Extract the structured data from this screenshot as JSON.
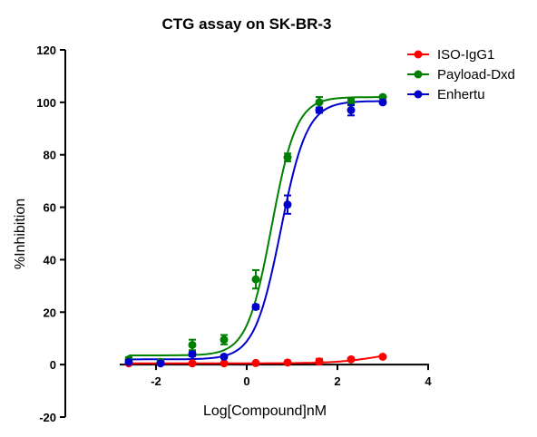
{
  "chart_data": {
    "type": "scatter",
    "title": "CTG assay on SK-BR-3",
    "xlabel": "Log[Compound]nM",
    "ylabel": "%Inhibition",
    "xlim": [
      -4,
      4
    ],
    "ylim": [
      -20,
      120
    ],
    "x_ticks": [
      -2,
      0,
      2,
      4
    ],
    "x_tick_labels": [
      "-2",
      "0",
      "2",
      "4"
    ],
    "y_ticks": [
      -20,
      0,
      20,
      40,
      60,
      80,
      100,
      120
    ],
    "y_tick_labels": [
      "-20",
      "0",
      "20",
      "40",
      "60",
      "80",
      "100",
      "120"
    ],
    "grid": false,
    "legend_position": "top-right",
    "series": [
      {
        "name": "ISO-IgG1",
        "color": "#ff0000",
        "x": [
          -2.6,
          -1.9,
          -1.2,
          -0.5,
          0.2,
          0.9,
          1.6,
          2.3,
          3.0
        ],
        "y": [
          0.5,
          0.5,
          0.5,
          0.5,
          0.6,
          0.8,
          1.2,
          2.0,
          3.0
        ],
        "err": [
          0.3,
          0.3,
          0.3,
          0.3,
          0.3,
          0.3,
          1.0,
          0.5,
          0.5
        ]
      },
      {
        "name": "Payload-Dxd",
        "color": "#008000",
        "x": [
          -2.6,
          -1.9,
          -1.2,
          -0.5,
          0.2,
          0.9,
          1.6,
          2.3,
          3.0
        ],
        "y": [
          2.0,
          1.0,
          7.5,
          9.5,
          32.5,
          79.0,
          100.0,
          100.0,
          102.0
        ],
        "err": [
          0.8,
          0.5,
          2.0,
          1.8,
          3.5,
          1.5,
          2.0,
          1.2,
          0.5
        ]
      },
      {
        "name": "Enhertu",
        "color": "#0000cc",
        "x": [
          -2.6,
          -1.9,
          -1.2,
          -0.5,
          0.2,
          0.9,
          1.6,
          2.3,
          3.0
        ],
        "y": [
          1.0,
          0.5,
          4.0,
          3.0,
          22.0,
          61.0,
          97.0,
          97.0,
          100.0
        ],
        "err": [
          0.5,
          0.3,
          0.8,
          0.6,
          0.8,
          3.5,
          1.0,
          2.0,
          0.5
        ]
      }
    ],
    "fit_curves": [
      {
        "series": "ISO-IgG1",
        "bottom": 0.5,
        "top": 5.0,
        "logEC50": 2.8,
        "hill": 1.0
      },
      {
        "series": "Payload-Dxd",
        "bottom": 3.5,
        "top": 102.0,
        "logEC50": 0.55,
        "hill": 1.6
      },
      {
        "series": "Enhertu",
        "bottom": 2.0,
        "top": 100.5,
        "logEC50": 0.75,
        "hill": 1.5
      }
    ]
  }
}
